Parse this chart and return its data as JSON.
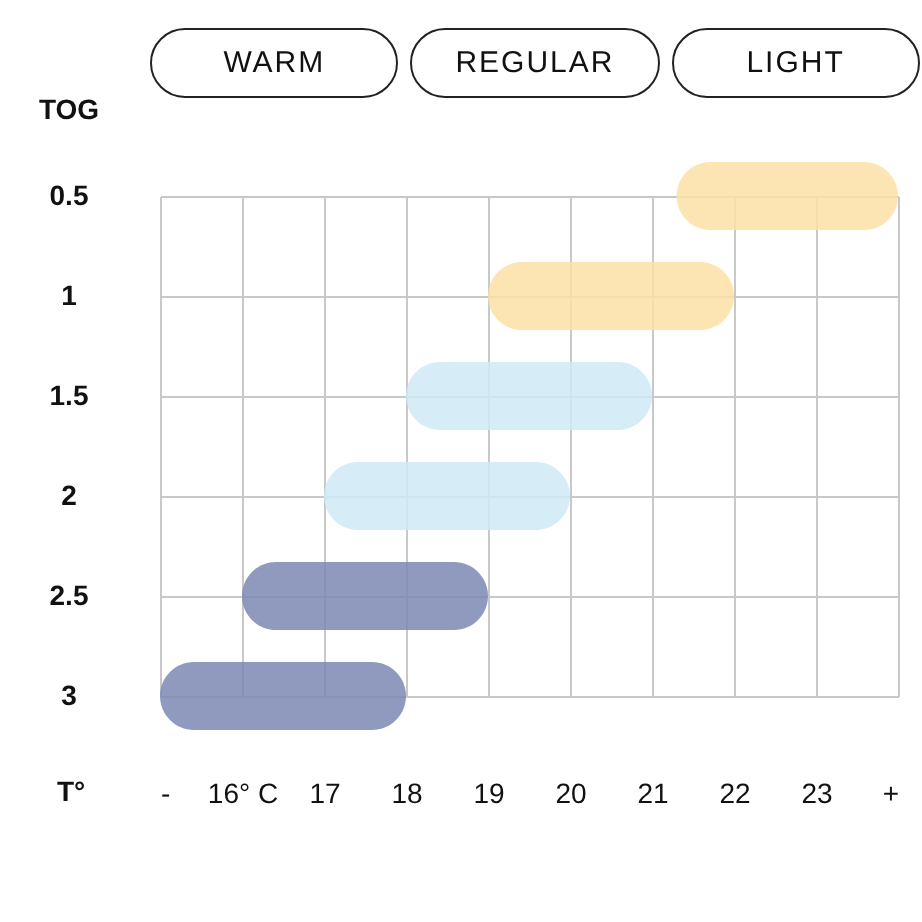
{
  "chart_data": {
    "type": "bar",
    "orientation": "horizontal",
    "ylabel": "TOG",
    "xlabel": "T°",
    "categories": [
      "0.5",
      "1",
      "1.5",
      "2",
      "2.5",
      "3"
    ],
    "base": [
      21.3,
      19,
      18,
      17,
      16,
      15
    ],
    "values": [
      2.7,
      3,
      3,
      3,
      3,
      3
    ],
    "colors": [
      "#fbdfa6",
      "#fbdfa6",
      "#cfeaf7",
      "#cfeaf7",
      "#7b88b3",
      "#7b88b3"
    ],
    "xlim": [
      15,
      24
    ],
    "xticks": [
      {
        "value": 15,
        "label": "-"
      },
      {
        "value": 16,
        "label": "16° C"
      },
      17,
      18,
      19,
      20,
      21,
      22,
      23,
      {
        "value": 24,
        "label": "+"
      }
    ],
    "grid": true,
    "annotations": [
      "WARM",
      "REGULAR",
      "LIGHT"
    ]
  }
}
